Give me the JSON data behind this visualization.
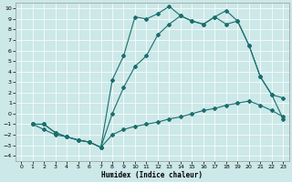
{
  "xlabel": "Humidex (Indice chaleur)",
  "bg_color": "#cce8e8",
  "line_color": "#1a6e6e",
  "xlim": [
    -0.5,
    23.5
  ],
  "ylim": [
    -4.5,
    10.5
  ],
  "xticks": [
    0,
    1,
    2,
    3,
    4,
    5,
    6,
    7,
    8,
    9,
    10,
    11,
    12,
    13,
    14,
    15,
    16,
    17,
    18,
    19,
    20,
    21,
    22,
    23
  ],
  "yticks": [
    -4,
    -3,
    -2,
    -1,
    0,
    1,
    2,
    3,
    4,
    5,
    6,
    7,
    8,
    9,
    10
  ],
  "line1_x": [
    1,
    2,
    3,
    4,
    5,
    6,
    7,
    8,
    9,
    10,
    11,
    12,
    13,
    14,
    15,
    16,
    17,
    18,
    19,
    20,
    21,
    22,
    23
  ],
  "line1_y": [
    -1,
    -1,
    -1.8,
    -2.2,
    -2.5,
    -2.7,
    -3.2,
    3.2,
    5.5,
    9.2,
    9.0,
    9.5,
    10.2,
    9.3,
    8.8,
    8.5,
    9.2,
    8.5,
    8.8,
    6.5,
    3.5,
    1.8,
    -0.5
  ],
  "line2_x": [
    1,
    2,
    3,
    4,
    5,
    6,
    7,
    8,
    9,
    10,
    11,
    12,
    13,
    14,
    15,
    16,
    17,
    18,
    19,
    20,
    21,
    22,
    23
  ],
  "line2_y": [
    -1,
    -1.5,
    -2,
    -2.2,
    -2.5,
    -2.7,
    -3.2,
    -2.0,
    -1.5,
    -1.2,
    -1.0,
    -0.8,
    -0.5,
    -0.3,
    0.0,
    0.3,
    0.5,
    0.8,
    1.0,
    1.2,
    0.8,
    0.3,
    -0.3
  ],
  "line3_x": [
    1,
    2,
    3,
    4,
    5,
    6,
    7,
    8,
    9,
    10,
    11,
    12,
    13,
    14,
    15,
    16,
    17,
    18,
    19,
    20,
    21,
    22,
    23
  ],
  "line3_y": [
    -1,
    -1,
    -1.8,
    -2.2,
    -2.5,
    -2.7,
    -3.2,
    0.0,
    2.5,
    4.5,
    5.5,
    7.5,
    8.5,
    9.3,
    8.8,
    8.5,
    9.2,
    9.8,
    8.8,
    6.5,
    3.5,
    1.8,
    1.5
  ]
}
